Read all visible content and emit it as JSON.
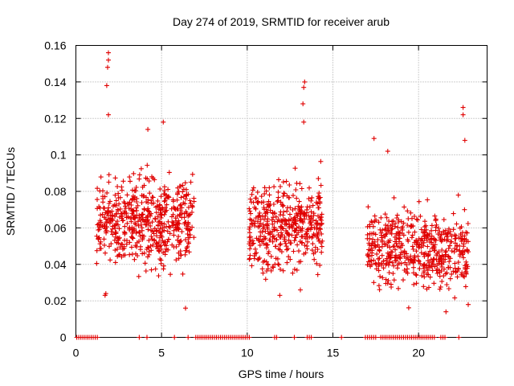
{
  "chart_data": {
    "type": "scatter",
    "title": "Day 274 of 2019, SRMTID for receiver arub",
    "xlabel": "GPS time / hours",
    "ylabel": "SRMTID / TECUs",
    "xlim": [
      0,
      24
    ],
    "ylim": [
      0,
      0.16
    ],
    "xticks": [
      0,
      5,
      10,
      15,
      20
    ],
    "xtick_labels": [
      "0",
      "5",
      "10",
      "15",
      "20"
    ],
    "yticks": [
      0,
      0.02,
      0.04,
      0.06,
      0.08,
      0.1,
      0.12,
      0.14,
      0.16
    ],
    "ytick_labels": [
      "0",
      "0.02",
      "0.04",
      "0.06",
      "0.08",
      "0.1",
      "0.12",
      "0.14",
      "0.16"
    ],
    "grid": true,
    "marker": "plus",
    "color": "#e00000",
    "series": [
      {
        "name": "SRMTID",
        "clusters": [
          {
            "x_range": [
              1.2,
              6.9
            ],
            "y_center": 0.064,
            "y_spread": 0.02,
            "n": 560
          },
          {
            "x_range": [
              10.1,
              14.4
            ],
            "y_center": 0.062,
            "y_spread": 0.02,
            "n": 430
          },
          {
            "x_range": [
              17.0,
              22.9
            ],
            "y_center": 0.048,
            "y_spread": 0.017,
            "n": 520
          }
        ],
        "notable_points": [
          {
            "x": 1.9,
            "y": 0.156
          },
          {
            "x": 1.9,
            "y": 0.152
          },
          {
            "x": 1.85,
            "y": 0.148
          },
          {
            "x": 1.8,
            "y": 0.138
          },
          {
            "x": 1.9,
            "y": 0.122
          },
          {
            "x": 1.75,
            "y": 0.024
          },
          {
            "x": 1.7,
            "y": 0.023
          },
          {
            "x": 5.1,
            "y": 0.118
          },
          {
            "x": 4.2,
            "y": 0.114
          },
          {
            "x": 6.4,
            "y": 0.016
          },
          {
            "x": 13.35,
            "y": 0.14
          },
          {
            "x": 13.3,
            "y": 0.137
          },
          {
            "x": 13.25,
            "y": 0.128
          },
          {
            "x": 13.3,
            "y": 0.118
          },
          {
            "x": 11.9,
            "y": 0.023
          },
          {
            "x": 13.1,
            "y": 0.026
          },
          {
            "x": 17.4,
            "y": 0.109
          },
          {
            "x": 18.2,
            "y": 0.102
          },
          {
            "x": 22.6,
            "y": 0.126
          },
          {
            "x": 22.6,
            "y": 0.122
          },
          {
            "x": 22.7,
            "y": 0.108
          },
          {
            "x": 21.6,
            "y": 0.014
          },
          {
            "x": 22.9,
            "y": 0.018
          }
        ],
        "zero_points_x_ranges": [
          [
            0.05,
            1.35
          ],
          [
            3.7,
            3.75
          ],
          [
            4.15,
            4.2
          ],
          [
            5.75,
            5.85
          ],
          [
            6.55,
            6.65
          ],
          [
            7.0,
            10.2
          ],
          [
            11.6,
            11.75
          ],
          [
            12.75,
            12.85
          ],
          [
            13.5,
            13.75
          ],
          [
            15.5,
            15.55
          ],
          [
            16.9,
            17.5
          ],
          [
            17.8,
            21.0
          ],
          [
            21.3,
            21.55
          ],
          [
            22.35,
            22.45
          ]
        ]
      }
    ]
  }
}
